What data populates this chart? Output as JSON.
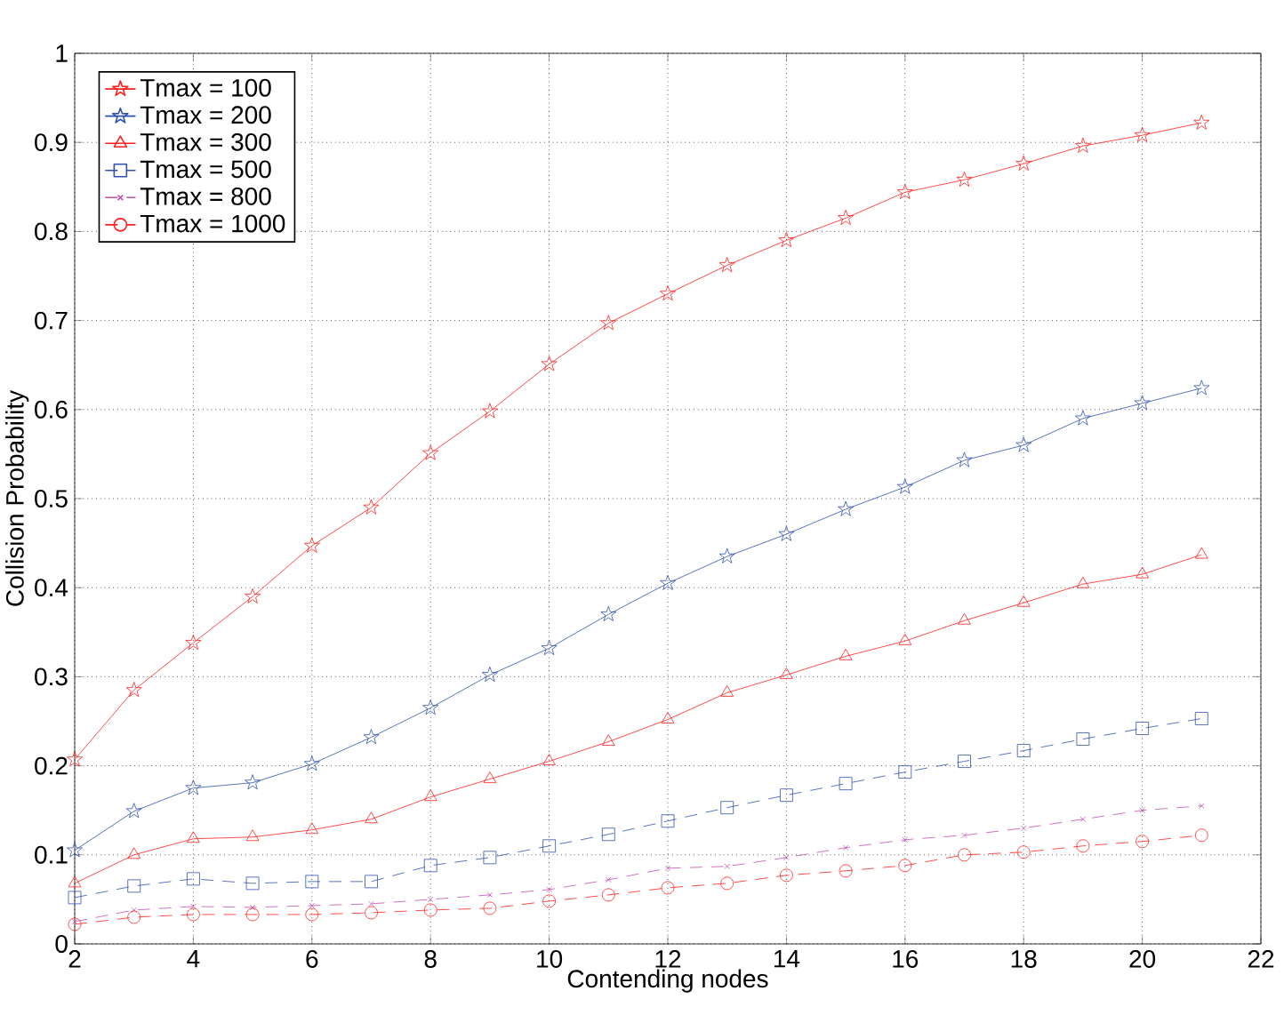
{
  "chart_data": {
    "type": "line",
    "xlabel": "Contending nodes",
    "ylabel": "Collision Probability",
    "x": [
      2,
      3,
      4,
      5,
      6,
      7,
      8,
      9,
      10,
      11,
      12,
      13,
      14,
      15,
      16,
      17,
      18,
      19,
      20,
      21
    ],
    "series": [
      {
        "name": "Tmax = 100",
        "color": "#ff2020",
        "marker": "star",
        "line_style": "solid",
        "values": [
          0.207,
          0.285,
          0.338,
          0.39,
          0.447,
          0.49,
          0.551,
          0.598,
          0.651,
          0.697,
          0.73,
          0.762,
          0.79,
          0.815,
          0.844,
          0.858,
          0.876,
          0.896,
          0.908,
          0.922
        ]
      },
      {
        "name": "Tmax = 200",
        "color": "#3050b0",
        "marker": "star",
        "line_style": "solid",
        "values": [
          0.105,
          0.149,
          0.175,
          0.181,
          0.202,
          0.232,
          0.265,
          0.302,
          0.332,
          0.37,
          0.405,
          0.435,
          0.46,
          0.488,
          0.513,
          0.543,
          0.56,
          0.59,
          0.607,
          0.624
        ]
      },
      {
        "name": "Tmax = 300",
        "color": "#ff2020",
        "marker": "triangle",
        "line_style": "solid",
        "values": [
          0.068,
          0.1,
          0.118,
          0.12,
          0.128,
          0.14,
          0.165,
          0.185,
          0.205,
          0.227,
          0.252,
          0.282,
          0.302,
          0.323,
          0.34,
          0.363,
          0.383,
          0.404,
          0.415,
          0.437
        ]
      },
      {
        "name": "Tmax = 500",
        "color": "#3050b0",
        "marker": "square",
        "line_style": "dashed",
        "values": [
          0.052,
          0.065,
          0.073,
          0.068,
          0.07,
          0.07,
          0.088,
          0.097,
          0.11,
          0.123,
          0.138,
          0.153,
          0.167,
          0.18,
          0.193,
          0.205,
          0.217,
          0.23,
          0.242,
          0.253
        ]
      },
      {
        "name": "Tmax = 800",
        "color": "#c050b0",
        "marker": "cross",
        "line_style": "dashed",
        "values": [
          0.025,
          0.038,
          0.042,
          0.041,
          0.043,
          0.045,
          0.05,
          0.055,
          0.061,
          0.072,
          0.085,
          0.087,
          0.097,
          0.108,
          0.117,
          0.122,
          0.13,
          0.14,
          0.15,
          0.155
        ]
      },
      {
        "name": "Tmax = 1000",
        "color": "#ff2020",
        "marker": "circle",
        "line_style": "dashed",
        "values": [
          0.022,
          0.03,
          0.033,
          0.033,
          0.033,
          0.035,
          0.038,
          0.04,
          0.048,
          0.055,
          0.063,
          0.068,
          0.077,
          0.082,
          0.088,
          0.1,
          0.103,
          0.11,
          0.115,
          0.122
        ]
      }
    ],
    "xlim": [
      2,
      22
    ],
    "xticks": [
      2,
      4,
      6,
      8,
      10,
      12,
      14,
      16,
      18,
      20,
      22
    ],
    "ylim": [
      0,
      1
    ],
    "yticks": [
      0,
      0.1,
      0.2,
      0.3,
      0.4,
      0.5,
      0.6,
      0.7,
      0.8,
      0.9,
      1
    ],
    "grid": true,
    "legend": "top left"
  }
}
